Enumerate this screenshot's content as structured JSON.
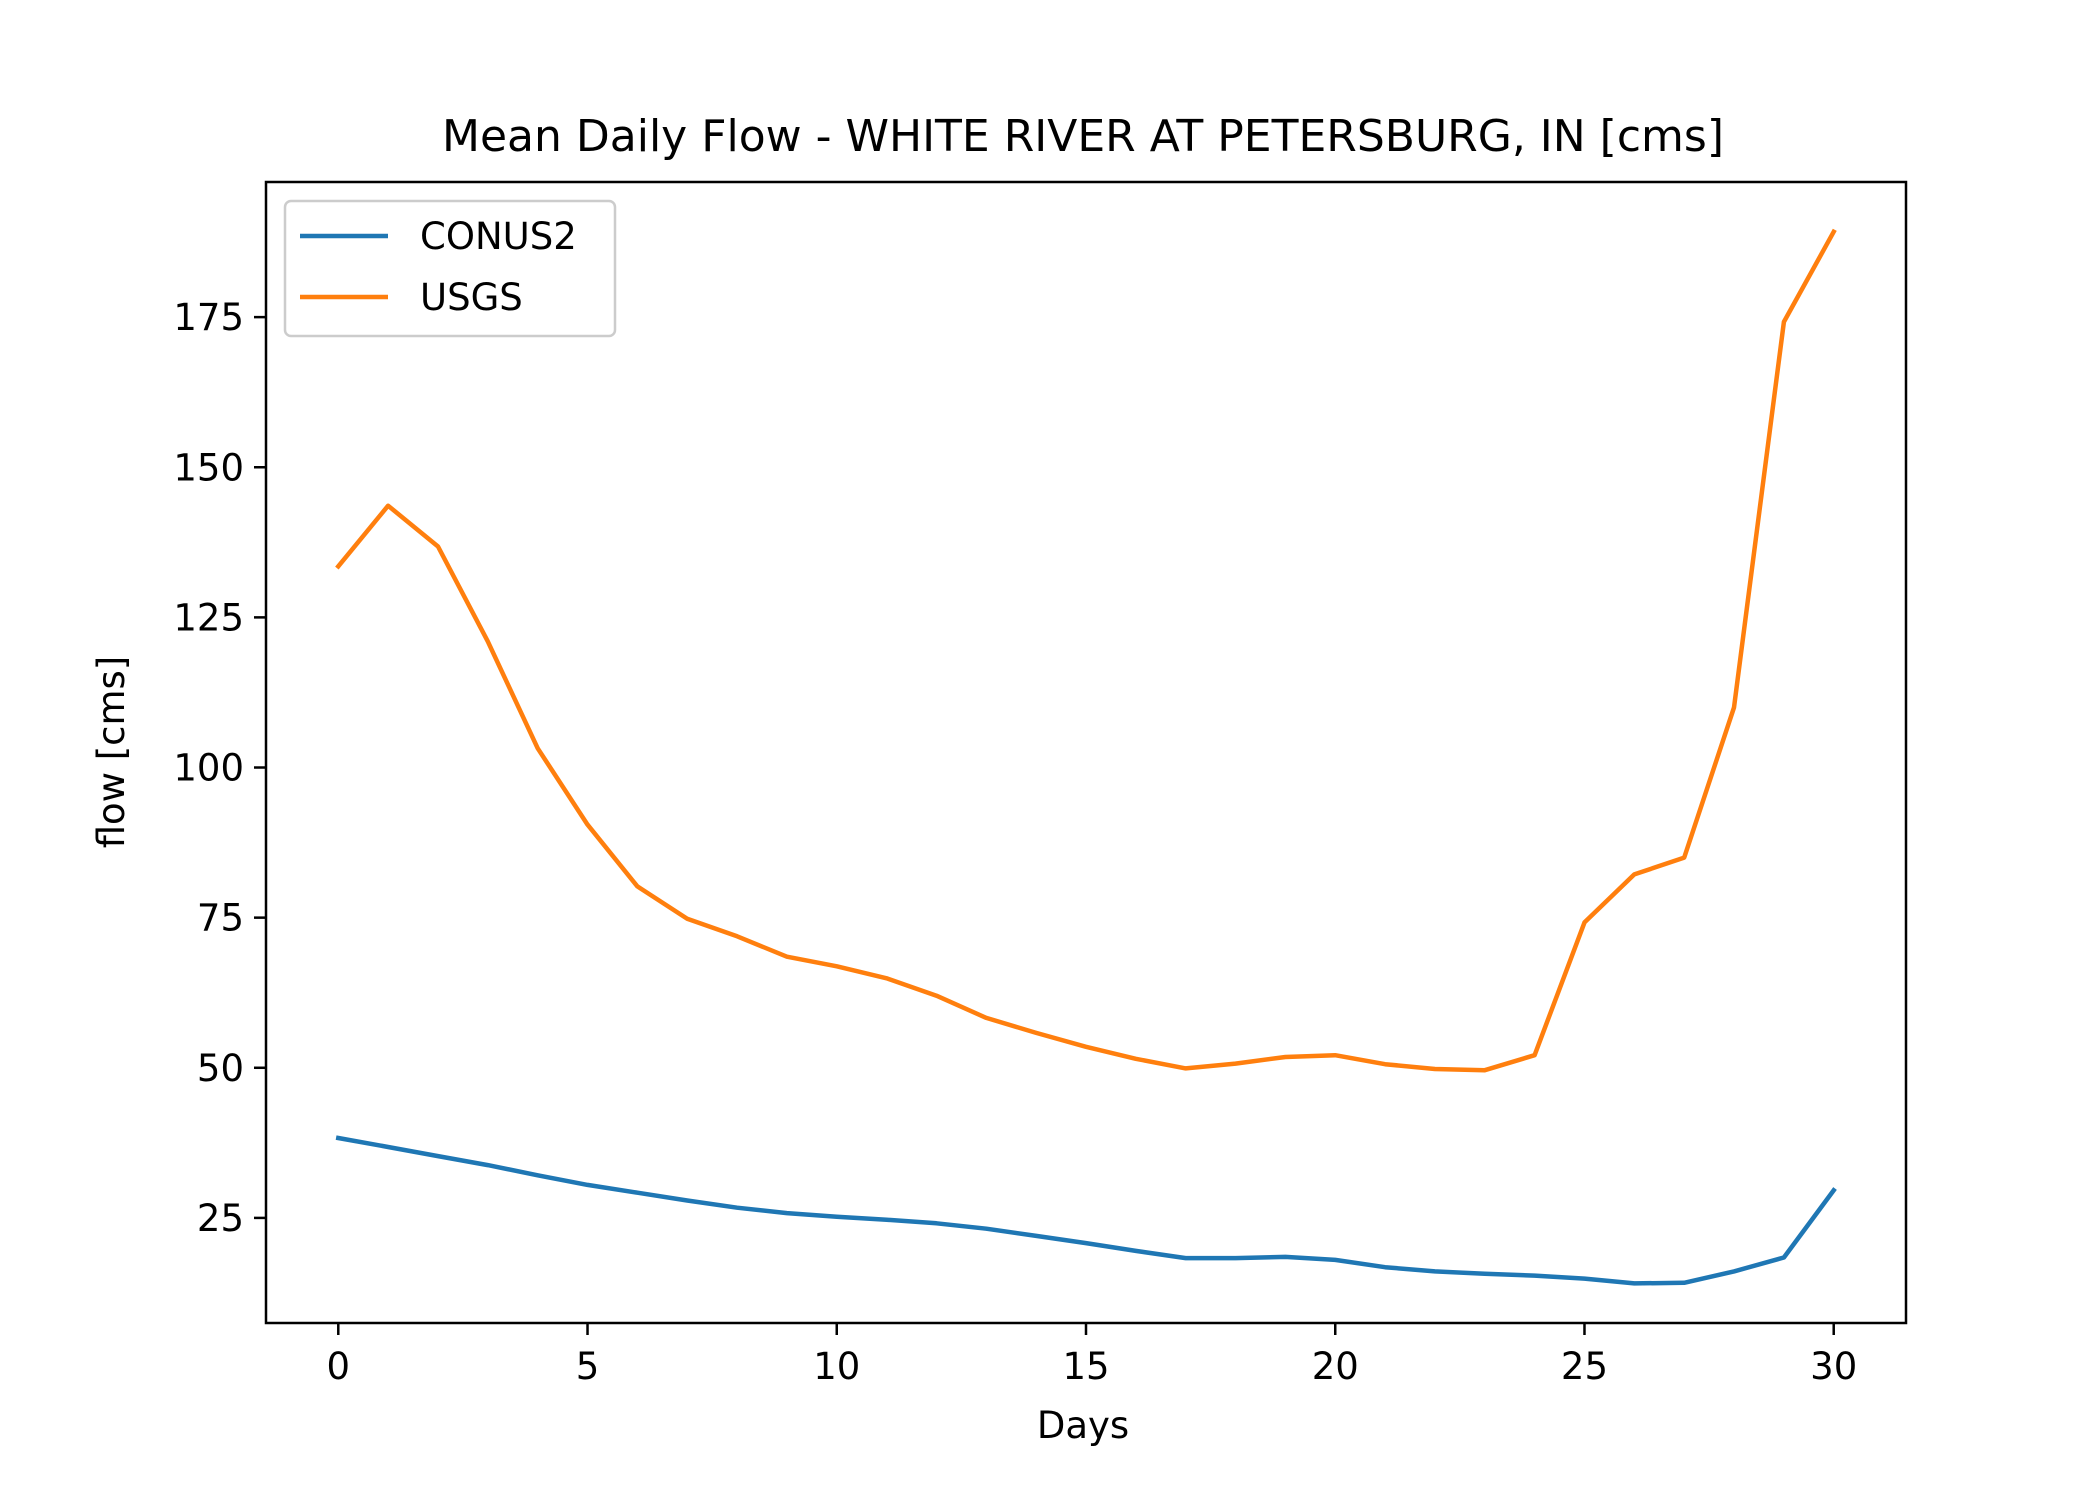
{
  "chart_data": {
    "type": "line",
    "title": "Mean Daily Flow - WHITE RIVER AT PETERSBURG, IN [cms]",
    "xlabel": "Days",
    "ylabel": "flow [cms]",
    "xlim": [
      -1.45,
      31.45
    ],
    "ylim": [
      7.5,
      197.5
    ],
    "xticks": [
      0,
      5,
      10,
      15,
      20,
      25,
      30
    ],
    "yticks": [
      25,
      50,
      75,
      100,
      125,
      150,
      175
    ],
    "grid": false,
    "legend_position": "top-left",
    "x": [
      0,
      1,
      2,
      3,
      4,
      5,
      6,
      7,
      8,
      9,
      10,
      11,
      12,
      13,
      14,
      15,
      16,
      17,
      18,
      19,
      20,
      21,
      22,
      23,
      24,
      25,
      26,
      27,
      28,
      29,
      30
    ],
    "series": [
      {
        "name": "CONUS2",
        "color": "#1f77b4",
        "values": [
          38.3,
          36.8,
          35.3,
          33.8,
          32.1,
          30.5,
          29.2,
          27.9,
          26.7,
          25.8,
          25.2,
          24.7,
          24.1,
          23.2,
          22.0,
          20.8,
          19.5,
          18.3,
          18.3,
          18.5,
          18.0,
          16.8,
          16.1,
          15.7,
          15.4,
          14.9,
          14.1,
          14.2,
          16.1,
          18.4,
          29.6
        ]
      },
      {
        "name": "USGS",
        "color": "#ff7f0e",
        "values": [
          133.5,
          143.6,
          136.8,
          121.0,
          103.2,
          90.5,
          80.2,
          74.8,
          71.9,
          68.5,
          66.9,
          64.9,
          62.0,
          58.3,
          55.8,
          53.5,
          51.5,
          49.9,
          50.7,
          51.8,
          52.1,
          50.6,
          49.8,
          49.6,
          52.1,
          74.2,
          82.2,
          85.0,
          110.0,
          174.2,
          189.2
        ]
      }
    ]
  }
}
